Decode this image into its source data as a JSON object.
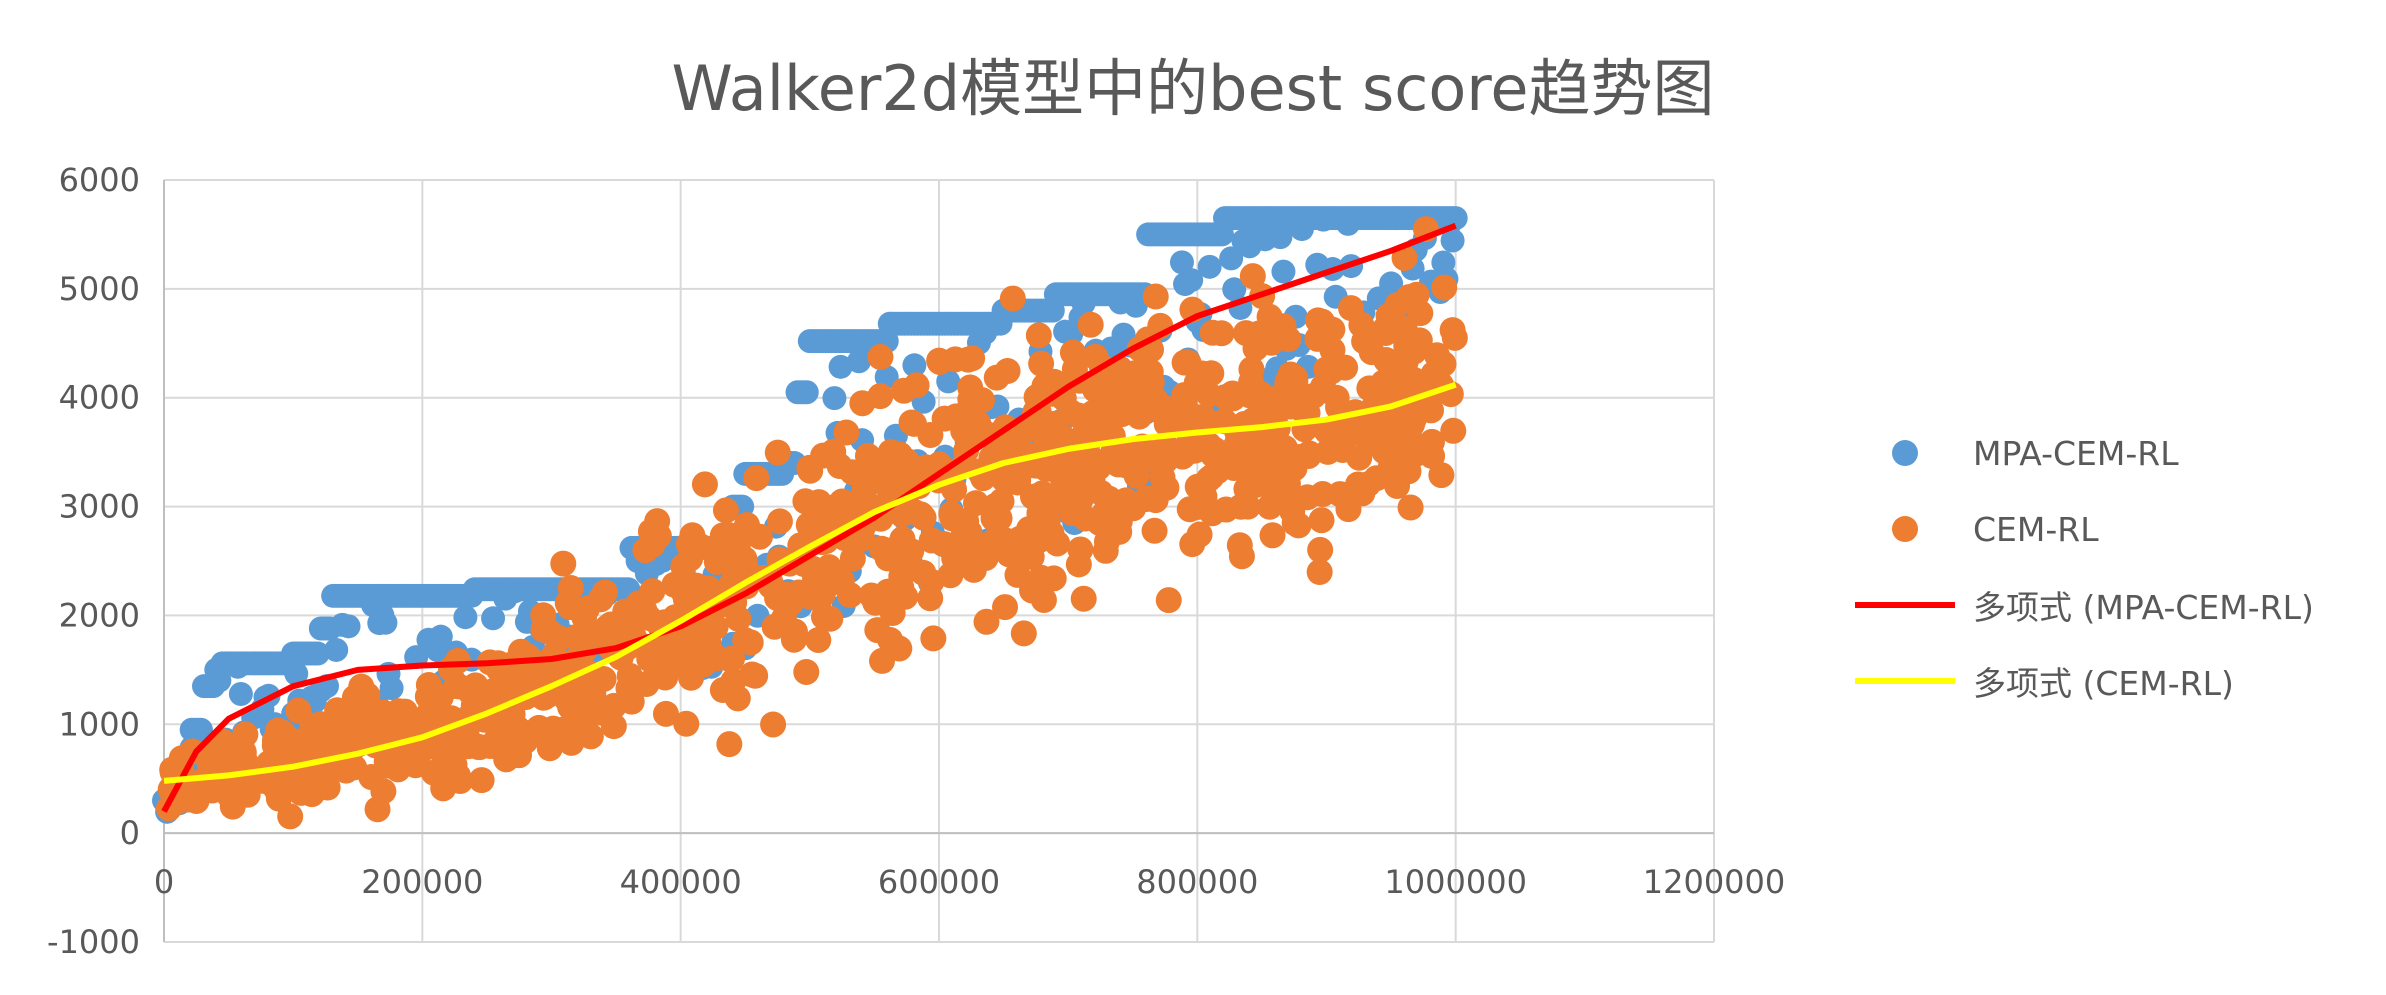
{
  "chart_data": {
    "type": "scatter",
    "title": "Walker2d模型中的best score趋势图",
    "xlabel": "",
    "ylabel": "",
    "xlim": [
      0,
      1200000
    ],
    "ylim": [
      -1000,
      6000
    ],
    "x_ticks": [
      "0",
      "200000",
      "400000",
      "600000",
      "800000",
      "1000000",
      "1200000"
    ],
    "y_ticks": [
      "-1000",
      "0",
      "1000",
      "2000",
      "3000",
      "4000",
      "5000",
      "6000"
    ],
    "grid": true,
    "legend_position": "right",
    "series": [
      {
        "name": "MPA-CEM-RL",
        "kind": "scatter",
        "color": "#5b9bd5",
        "steps": [
          [
            0,
            300
          ],
          [
            20000,
            950
          ],
          [
            30000,
            1350
          ],
          [
            40000,
            1500
          ],
          [
            45000,
            1560
          ],
          [
            100000,
            1650
          ],
          [
            120000,
            1880
          ],
          [
            130000,
            2180
          ],
          [
            240000,
            2240
          ],
          [
            360000,
            2620
          ],
          [
            440000,
            3000
          ],
          [
            450000,
            3300
          ],
          [
            480000,
            3400
          ],
          [
            490000,
            4050
          ],
          [
            500000,
            4520
          ],
          [
            560000,
            4680
          ],
          [
            650000,
            4800
          ],
          [
            690000,
            4950
          ],
          [
            760000,
            5500
          ],
          [
            820000,
            5650
          ],
          [
            1000000,
            5650
          ]
        ],
        "lower_band": [
          [
            0,
            0
          ],
          [
            100000,
            700
          ],
          [
            200000,
            1000
          ],
          [
            300000,
            1150
          ],
          [
            400000,
            1350
          ],
          [
            500000,
            1900
          ],
          [
            600000,
            2300
          ],
          [
            700000,
            2800
          ],
          [
            800000,
            3500
          ],
          [
            900000,
            4200
          ],
          [
            1000000,
            5000
          ]
        ]
      },
      {
        "name": "CEM-RL",
        "kind": "scatter",
        "color": "#ed7d31",
        "trend": [
          [
            0,
            480
          ],
          [
            100000,
            620
          ],
          [
            200000,
            900
          ],
          [
            300000,
            1350
          ],
          [
            400000,
            1950
          ],
          [
            500000,
            2600
          ],
          [
            600000,
            3150
          ],
          [
            700000,
            3500
          ],
          [
            800000,
            3650
          ],
          [
            900000,
            3800
          ],
          [
            1000000,
            4100
          ]
        ],
        "spread": [
          [
            0,
            250
          ],
          [
            200000,
            500
          ],
          [
            300000,
            700
          ],
          [
            400000,
            1000
          ],
          [
            500000,
            1100
          ],
          [
            600000,
            1150
          ],
          [
            700000,
            1200
          ],
          [
            800000,
            1150
          ],
          [
            900000,
            1100
          ],
          [
            1000000,
            1000
          ]
        ]
      },
      {
        "name": "多项式 (MPA-CEM-RL)",
        "kind": "line",
        "color": "#ff0000",
        "x": [
          0,
          25000,
          50000,
          100000,
          150000,
          200000,
          250000,
          300000,
          350000,
          400000,
          450000,
          500000,
          550000,
          600000,
          650000,
          700000,
          750000,
          800000,
          850000,
          900000,
          950000,
          1000000
        ],
        "y": [
          200,
          750,
          1050,
          1350,
          1500,
          1540,
          1560,
          1600,
          1700,
          1900,
          2200,
          2550,
          2900,
          3300,
          3700,
          4100,
          4450,
          4750,
          4950,
          5150,
          5350,
          5580
        ]
      },
      {
        "name": "多项式 (CEM-RL)",
        "kind": "line",
        "color": "#ffff00",
        "x": [
          0,
          50000,
          100000,
          150000,
          200000,
          250000,
          300000,
          350000,
          400000,
          450000,
          500000,
          550000,
          600000,
          650000,
          700000,
          750000,
          800000,
          850000,
          900000,
          950000,
          1000000
        ],
        "y": [
          480,
          530,
          610,
          730,
          880,
          1100,
          1350,
          1620,
          1950,
          2300,
          2630,
          2950,
          3200,
          3400,
          3530,
          3620,
          3680,
          3730,
          3800,
          3920,
          4120
        ]
      }
    ]
  }
}
